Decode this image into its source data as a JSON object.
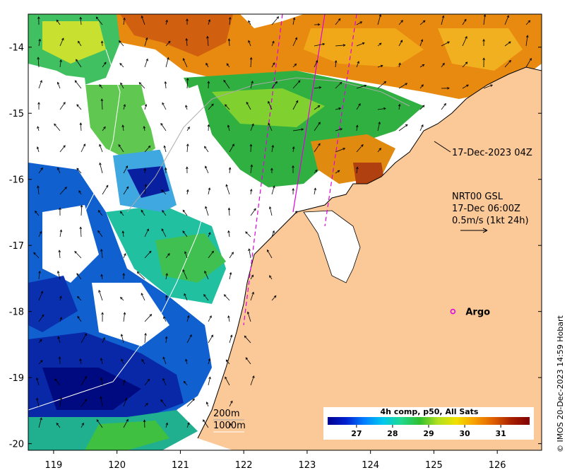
{
  "map": {
    "lon_range": [
      118.6,
      126.7
    ],
    "lat_range": [
      -20.1,
      -13.5
    ],
    "x_ticks": [
      "119",
      "120",
      "121",
      "122",
      "123",
      "124",
      "125",
      "126"
    ],
    "y_ticks": [
      "-14",
      "-15",
      "-16",
      "-17",
      "-18",
      "-19",
      "-20"
    ],
    "land_color": "#fbc898",
    "coast_color": "#000000"
  },
  "annotations": {
    "timestamp": "17-Dec-2023 04Z",
    "current_title": "NRT00 GSL",
    "current_time": "17-Dec 06:00Z",
    "current_scale": "0.5m/s (1kt 24h)",
    "argo_label": "Argo",
    "isobath_200": "200m",
    "isobath_1000": "1000m",
    "copyright": "© IMOS 20-Dec-2023 14:59 Hobart"
  },
  "colorbar": {
    "title": "4h comp, p50, All Sats",
    "ticks": [
      "27",
      "28",
      "29",
      "30",
      "31"
    ],
    "range": [
      26.2,
      31.8
    ],
    "colors": [
      "#00008f",
      "#0020d0",
      "#0080ff",
      "#00c8f0",
      "#20d890",
      "#30c030",
      "#b0e020",
      "#f0e000",
      "#f8a000",
      "#e06000",
      "#a82000",
      "#800000"
    ]
  },
  "argo": {
    "lon": 125.3,
    "lat": -18.0,
    "color": "#e000e0"
  }
}
